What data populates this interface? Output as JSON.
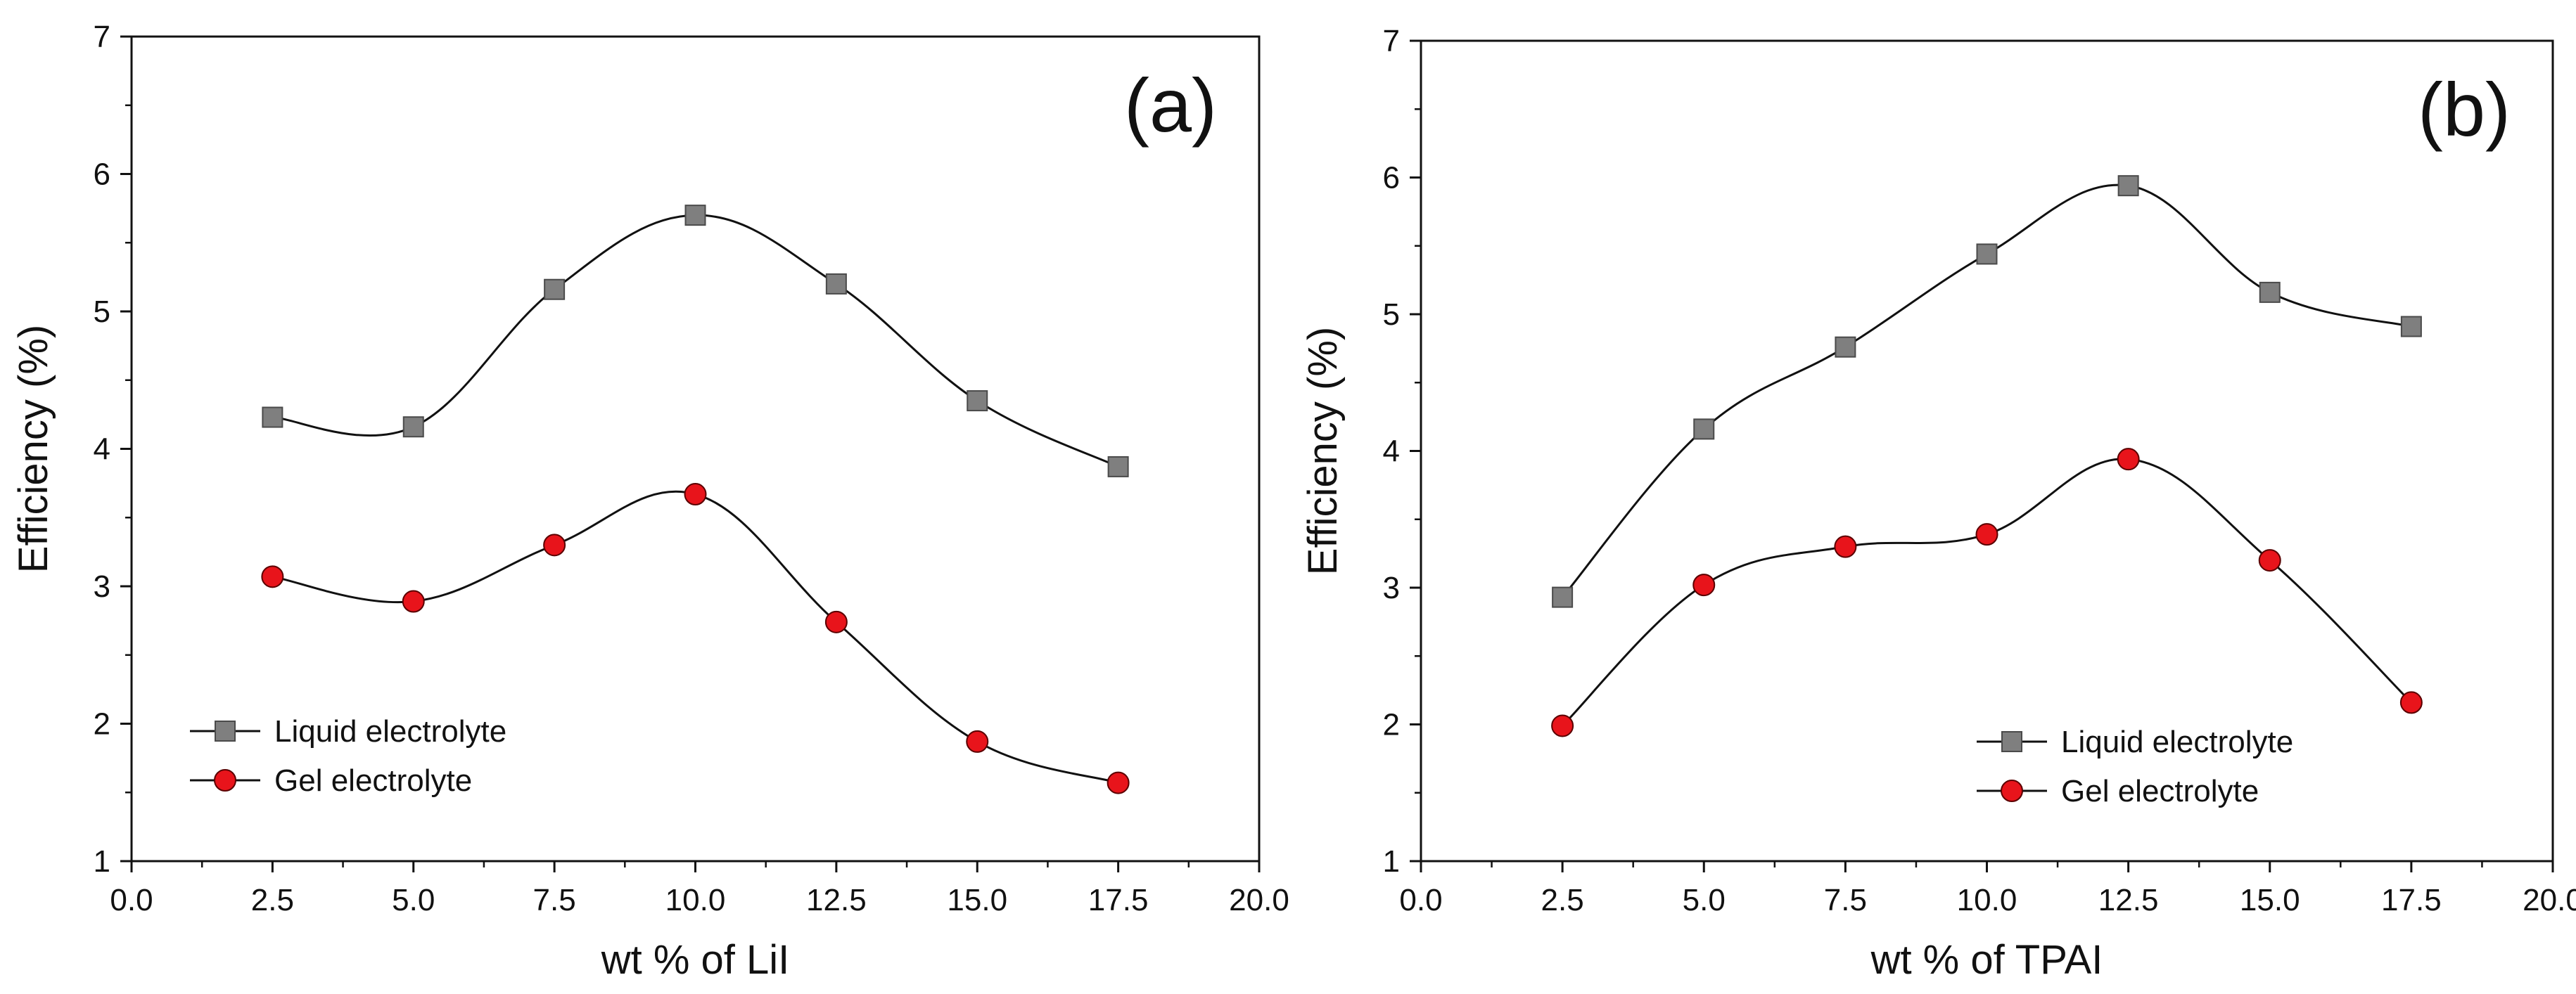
{
  "figure": {
    "description_free": true
  },
  "colors": {
    "axis": "#111111",
    "line": "#111111",
    "liquid_marker": "#7f7f7f",
    "gel_marker": "#e8141b"
  },
  "chart_data": [
    {
      "type": "line",
      "panel_label": "(a)",
      "xlabel": "wt % of LiI",
      "ylabel": "Efficiency (%)",
      "xlim": [
        0.0,
        20.0
      ],
      "ylim": [
        1,
        7
      ],
      "xticks": [
        "0.0",
        "2.5",
        "5.0",
        "7.5",
        "10.0",
        "12.5",
        "15.0",
        "17.5",
        "20.0"
      ],
      "yticks": [
        "1",
        "2",
        "3",
        "4",
        "5",
        "6",
        "7"
      ],
      "legend_position": "lower-left",
      "series": [
        {
          "name": "Liquid electrolyte",
          "marker": "square",
          "x": [
            2.5,
            5.0,
            7.5,
            10.0,
            12.5,
            15.0,
            17.5
          ],
          "y": [
            4.23,
            4.16,
            5.16,
            5.7,
            5.2,
            4.35,
            3.87
          ]
        },
        {
          "name": "Gel electrolyte",
          "marker": "circle",
          "x": [
            2.5,
            5.0,
            7.5,
            10.0,
            12.5,
            15.0,
            17.5
          ],
          "y": [
            3.07,
            2.89,
            3.3,
            3.67,
            2.74,
            1.87,
            1.57
          ]
        }
      ]
    },
    {
      "type": "line",
      "panel_label": "(b)",
      "xlabel": "wt % of TPAI",
      "ylabel": "Efficiency (%)",
      "xlim": [
        0.0,
        20.0
      ],
      "ylim": [
        1,
        7
      ],
      "xticks": [
        "0.0",
        "2.5",
        "5.0",
        "7.5",
        "10.0",
        "12.5",
        "15.0",
        "17.5",
        "20.0"
      ],
      "yticks": [
        "1",
        "2",
        "3",
        "4",
        "5",
        "6",
        "7"
      ],
      "legend_position": "lower-right",
      "series": [
        {
          "name": "Liquid electrolyte",
          "marker": "square",
          "x": [
            2.5,
            5.0,
            7.5,
            10.0,
            12.5,
            15.0,
            17.5
          ],
          "y": [
            2.93,
            4.16,
            4.76,
            5.44,
            5.94,
            5.16,
            4.91
          ]
        },
        {
          "name": "Gel electrolyte",
          "marker": "circle",
          "x": [
            2.5,
            5.0,
            7.5,
            10.0,
            12.5,
            15.0,
            17.5
          ],
          "y": [
            1.99,
            3.02,
            3.3,
            3.39,
            3.94,
            3.2,
            2.16
          ]
        }
      ]
    }
  ]
}
